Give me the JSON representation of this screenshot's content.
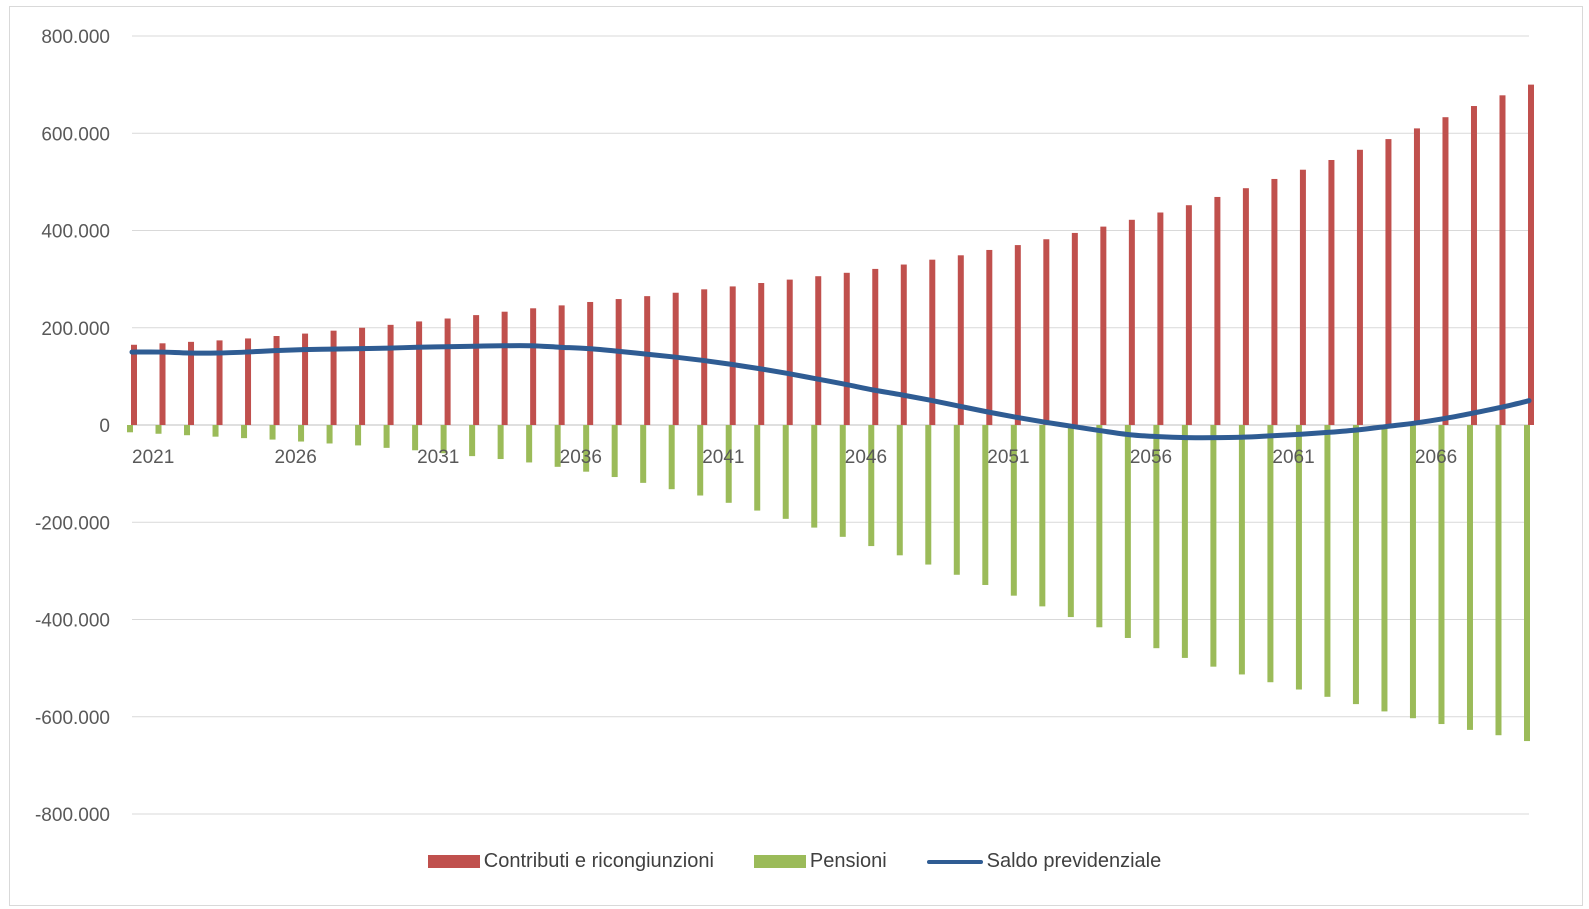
{
  "chart_data": {
    "type": "bar",
    "title": "",
    "xlabel": "",
    "ylabel": "",
    "ylim": [
      -800000,
      800000
    ],
    "y_ticks": [
      800000,
      600000,
      400000,
      200000,
      0,
      -200000,
      -400000,
      -600000,
      -800000
    ],
    "y_tick_labels": [
      "800.000",
      "600.000",
      "400.000",
      "200.000",
      "0",
      "-200.000",
      "-400.000",
      "-600.000",
      "-800.000"
    ],
    "x_tick_labels": [
      "2021",
      "2026",
      "2031",
      "2036",
      "2041",
      "2046",
      "2051",
      "2056",
      "2061",
      "2066"
    ],
    "x_labeled_years": [
      2021,
      2026,
      2031,
      2036,
      2041,
      2046,
      2051,
      2056,
      2061,
      2066
    ],
    "grid": true,
    "legend_position": "bottom",
    "categories": [
      2021,
      2022,
      2023,
      2024,
      2025,
      2026,
      2027,
      2028,
      2029,
      2030,
      2031,
      2032,
      2033,
      2034,
      2035,
      2036,
      2037,
      2038,
      2039,
      2040,
      2041,
      2042,
      2043,
      2044,
      2045,
      2046,
      2047,
      2048,
      2049,
      2050,
      2051,
      2052,
      2053,
      2054,
      2055,
      2056,
      2057,
      2058,
      2059,
      2060,
      2061,
      2062,
      2063,
      2064,
      2065,
      2066,
      2067,
      2068,
      2069,
      2070
    ],
    "series": [
      {
        "name": "Contributi e ricongiunzioni",
        "type": "bar",
        "color": "#c0504d",
        "values": [
          165000,
          168000,
          171000,
          174000,
          178000,
          183000,
          188000,
          194000,
          200000,
          206000,
          213000,
          219000,
          226000,
          233000,
          240000,
          246000,
          253000,
          259000,
          265000,
          272000,
          279000,
          285000,
          292000,
          299000,
          306000,
          313000,
          321000,
          330000,
          340000,
          349000,
          360000,
          370000,
          382000,
          395000,
          408000,
          422000,
          437000,
          452000,
          469000,
          487000,
          506000,
          525000,
          545000,
          566000,
          588000,
          610000,
          633000,
          656000,
          678000,
          700000
        ]
      },
      {
        "name": "Pensioni",
        "type": "bar",
        "color": "#9bbb59",
        "values": [
          -15000,
          -18000,
          -21000,
          -24000,
          -27000,
          -30000,
          -34000,
          -38000,
          -42000,
          -47000,
          -52000,
          -58000,
          -64000,
          -70000,
          -77000,
          -86000,
          -96000,
          -107000,
          -119000,
          -132000,
          -145000,
          -160000,
          -176000,
          -193000,
          -211000,
          -230000,
          -249000,
          -268000,
          -287000,
          -308000,
          -329000,
          -351000,
          -373000,
          -395000,
          -416000,
          -438000,
          -459000,
          -479000,
          -497000,
          -513000,
          -529000,
          -544000,
          -559000,
          -574000,
          -589000,
          -603000,
          -615000,
          -627000,
          -638000,
          -650000
        ]
      },
      {
        "name": "Saldo previdenziale",
        "type": "line",
        "color": "#2f5c93",
        "values": [
          150000,
          150000,
          148000,
          148000,
          150000,
          153000,
          155000,
          156000,
          157000,
          158000,
          160000,
          161000,
          162000,
          163000,
          163000,
          160000,
          157000,
          152000,
          146000,
          140000,
          133000,
          125000,
          116000,
          106000,
          95000,
          84000,
          72000,
          62000,
          51000,
          39000,
          27000,
          16000,
          6000,
          -3000,
          -12000,
          -20000,
          -24000,
          -26000,
          -26000,
          -25000,
          -22000,
          -19000,
          -15000,
          -10000,
          -3000,
          4000,
          13000,
          24000,
          36000,
          50000
        ]
      }
    ]
  },
  "legend": {
    "bar1_label": "Contributi e ricongiunzioni",
    "bar2_label": "Pensioni",
    "line_label": "Saldo previdenziale"
  }
}
